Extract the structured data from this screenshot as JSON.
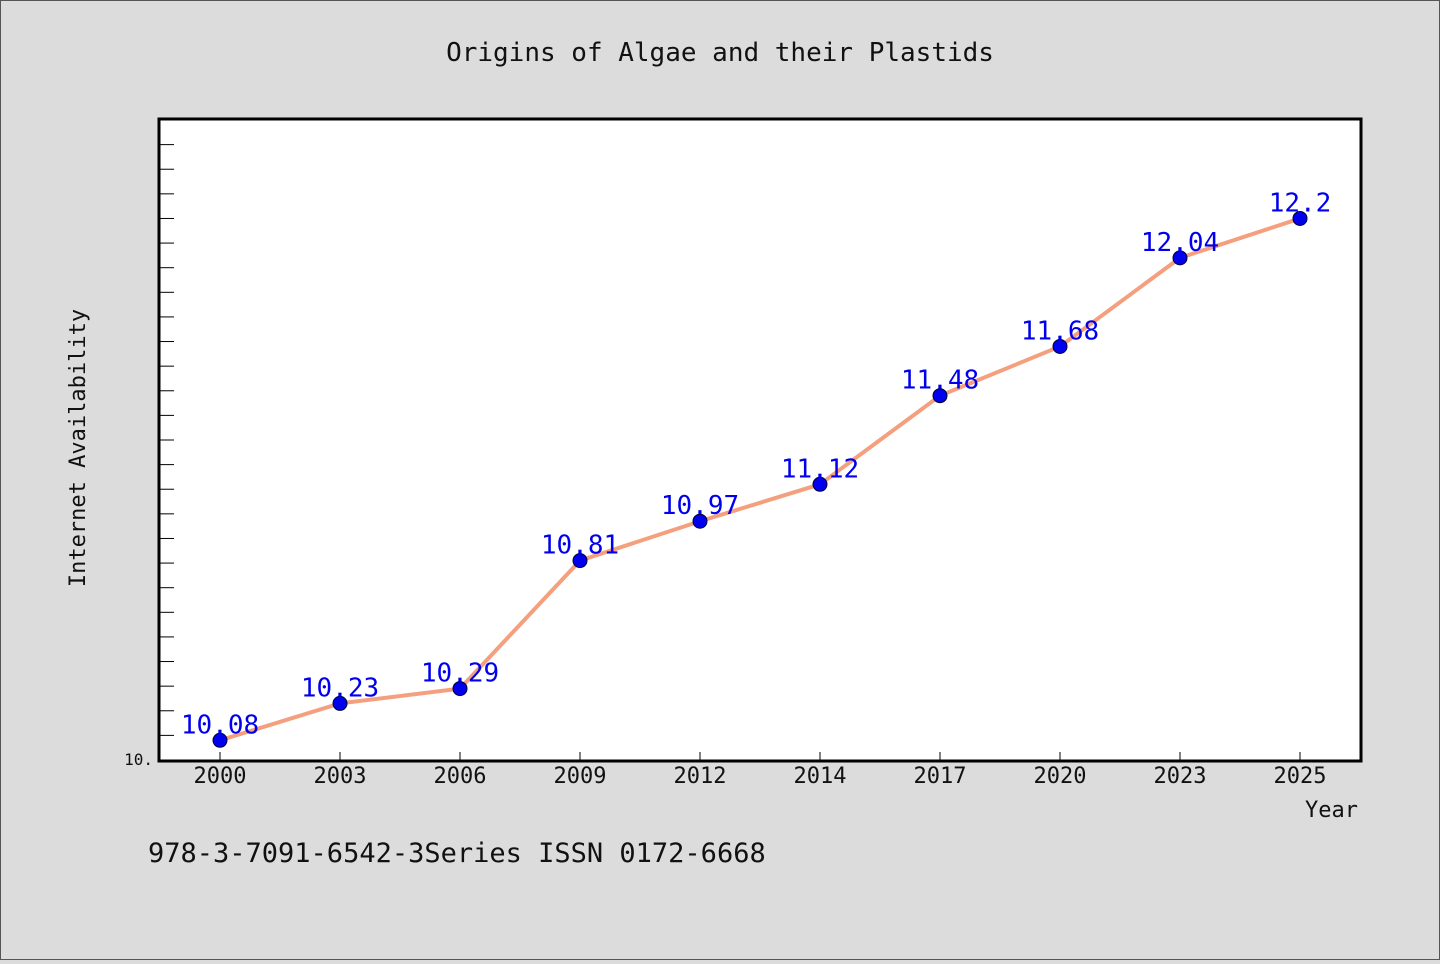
{
  "chart_data": {
    "type": "line",
    "title": "Origins of Algae and their Plastids",
    "xlabel": "Year",
    "ylabel": "Internet Availability",
    "y_tick_label": "10.",
    "ylim": [
      10.0,
      12.6
    ],
    "grid": false,
    "categories": [
      "2000",
      "2003",
      "2006",
      "2009",
      "2012",
      "2014",
      "2017",
      "2020",
      "2023",
      "2025"
    ],
    "series": [
      {
        "values": [
          10.08,
          10.23,
          10.29,
          10.81,
          10.97,
          11.12,
          11.48,
          11.68,
          12.04,
          12.2
        ],
        "data_labels": [
          "10.08",
          "10.23",
          "10.29",
          "10.81",
          "10.97",
          "11.12",
          "11.48",
          "11.68",
          "12.04",
          "12.2"
        ]
      }
    ],
    "line_color": "#f4a07e",
    "marker_color": "#0000ee",
    "label_color": "#0000ee"
  },
  "footer": {
    "text": "978-3-7091-6542-3Series ISSN 0172-6668"
  }
}
